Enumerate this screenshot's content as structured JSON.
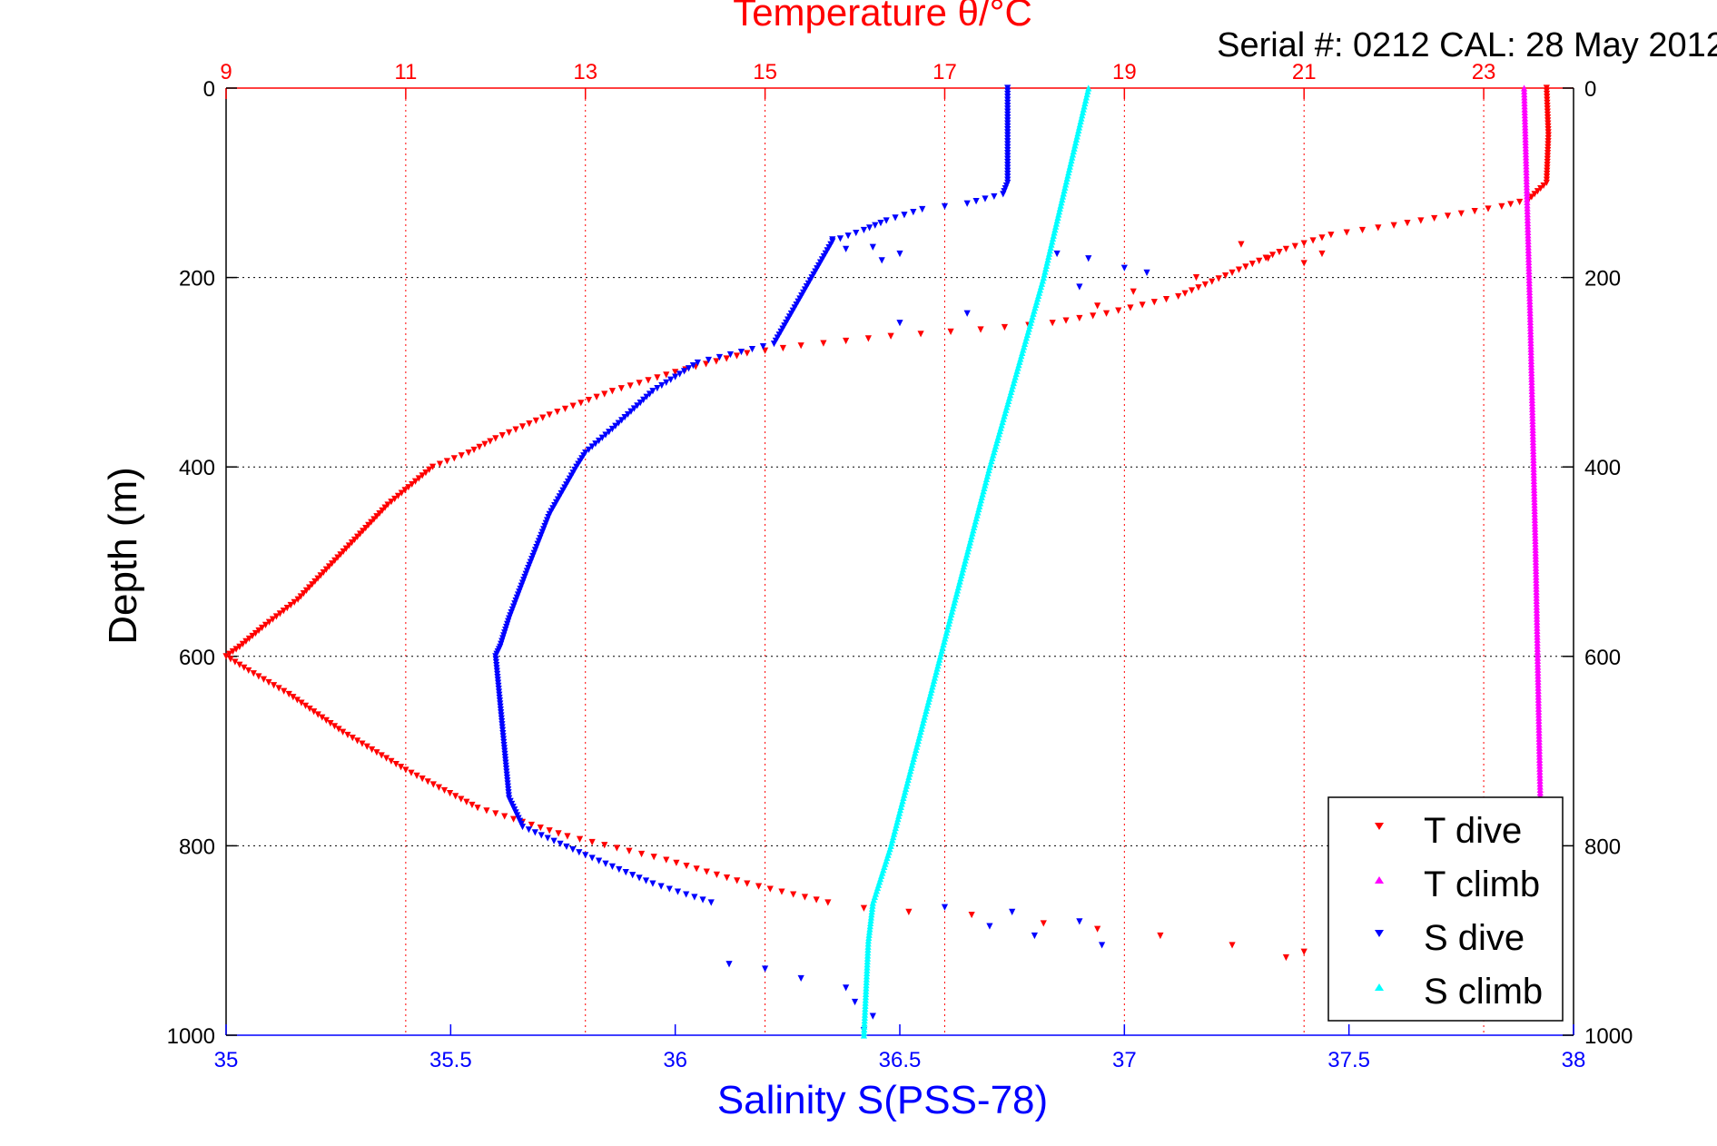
{
  "figure": {
    "title": "Temperature θ/°C",
    "serial_label": "Serial #: 0212  CAL: 28 May 2012",
    "ylabel": "Depth (m)",
    "xlabel": "Salinity S(PSS-78)"
  },
  "colors": {
    "temperature_axis": "#ff0000",
    "salinity_axis": "#0000ff",
    "t_dive": "#ff0000",
    "t_climb": "#ff00ff",
    "s_dive": "#0000ff",
    "s_climb": "#00ffff",
    "grid_temperature": "#ff0000",
    "grid_depth": "#000000"
  },
  "chart_data": {
    "type": "scatter",
    "title": "Temperature θ/°C",
    "subtitle": "Serial #: 0212  CAL: 28 May 2012",
    "ylabel": "Depth (m)",
    "xlabel": "Salinity S(PSS-78)",
    "x_top_label": "Temperature θ/°C",
    "ylim": [
      0,
      1000
    ],
    "y_reversed": true,
    "temperature_xlim": [
      9,
      24
    ],
    "salinity_xlim": [
      35,
      38
    ],
    "y_ticks": [
      0,
      200,
      400,
      600,
      800,
      1000
    ],
    "temperature_ticks": [
      9,
      11,
      13,
      15,
      17,
      19,
      21,
      23
    ],
    "salinity_ticks": [
      35,
      35.5,
      36,
      36.5,
      37,
      37.5,
      38
    ],
    "grid": "on",
    "legend_position": "bottom-right",
    "legend": [
      "T dive",
      "T climb",
      "S dive",
      "S climb"
    ],
    "series": [
      {
        "name": "T dive",
        "axis": "temperature",
        "marker": "triangle-down",
        "points": [
          [
            23.7,
            0
          ],
          [
            23.72,
            50
          ],
          [
            23.7,
            100
          ],
          [
            23.5,
            118
          ],
          [
            23.2,
            125
          ],
          [
            22.6,
            135
          ],
          [
            22.0,
            145
          ],
          [
            21.3,
            155
          ],
          [
            20.8,
            170
          ],
          [
            20.2,
            195
          ],
          [
            19.6,
            220
          ],
          [
            18.8,
            238
          ],
          [
            18.2,
            248
          ],
          [
            17.4,
            255
          ],
          [
            16.4,
            262
          ],
          [
            15.4,
            272
          ],
          [
            14.8,
            280
          ],
          [
            14.0,
            300
          ],
          [
            13.3,
            320
          ],
          [
            12.6,
            345
          ],
          [
            12.0,
            370
          ],
          [
            11.7,
            385
          ],
          [
            11.3,
            400
          ],
          [
            10.8,
            440
          ],
          [
            10.4,
            480
          ],
          [
            9.8,
            540
          ],
          [
            9.4,
            570
          ],
          [
            9.15,
            590
          ],
          [
            9.0,
            600
          ],
          [
            9.25,
            615
          ],
          [
            9.7,
            640
          ],
          [
            10.3,
            680
          ],
          [
            11.0,
            720
          ],
          [
            11.8,
            760
          ],
          [
            12.8,
            790
          ],
          [
            13.9,
            815
          ],
          [
            14.8,
            840
          ],
          [
            15.7,
            860
          ]
        ],
        "scatter_points": [
          [
            20.3,
            165
          ],
          [
            20.6,
            180
          ],
          [
            21.0,
            185
          ],
          [
            21.2,
            175
          ],
          [
            19.8,
            200
          ],
          [
            19.1,
            215
          ],
          [
            18.7,
            230
          ],
          [
            16.1,
            866
          ],
          [
            16.6,
            870
          ],
          [
            17.3,
            873
          ],
          [
            18.1,
            882
          ],
          [
            18.7,
            888
          ],
          [
            19.4,
            895
          ],
          [
            20.2,
            905
          ],
          [
            21.0,
            912
          ],
          [
            21.6,
            922
          ],
          [
            22.1,
            930
          ],
          [
            21.4,
            925
          ],
          [
            20.8,
            918
          ],
          [
            21.9,
            915
          ]
        ]
      },
      {
        "name": "T climb",
        "axis": "temperature",
        "marker": "triangle-up",
        "points": [
          [
            23.45,
            0
          ],
          [
            23.52,
            250
          ],
          [
            23.58,
            500
          ],
          [
            23.63,
            750
          ],
          [
            23.65,
            860
          ]
        ]
      },
      {
        "name": "S dive",
        "axis": "salinity",
        "marker": "triangle-down",
        "points": [
          [
            36.74,
            0
          ],
          [
            36.74,
            50
          ],
          [
            36.74,
            100
          ],
          [
            36.73,
            112
          ],
          [
            36.65,
            122
          ],
          [
            36.55,
            128
          ],
          [
            36.47,
            140
          ],
          [
            36.42,
            150
          ],
          [
            36.35,
            162
          ],
          [
            36.22,
            270
          ],
          [
            36.05,
            290
          ],
          [
            35.95,
            320
          ],
          [
            35.86,
            360
          ],
          [
            35.8,
            385
          ],
          [
            35.78,
            400
          ],
          [
            35.72,
            450
          ],
          [
            35.67,
            510
          ],
          [
            35.63,
            560
          ],
          [
            35.61,
            590
          ],
          [
            35.6,
            600
          ],
          [
            35.61,
            650
          ],
          [
            35.62,
            700
          ],
          [
            35.63,
            750
          ],
          [
            35.66,
            780
          ],
          [
            35.8,
            810
          ],
          [
            35.95,
            840
          ],
          [
            36.08,
            860
          ]
        ],
        "scatter_points": [
          [
            36.35,
            160
          ],
          [
            36.38,
            170
          ],
          [
            36.44,
            168
          ],
          [
            36.5,
            175
          ],
          [
            36.46,
            182
          ],
          [
            36.85,
            175
          ],
          [
            36.92,
            180
          ],
          [
            37.0,
            190
          ],
          [
            37.05,
            195
          ],
          [
            36.9,
            210
          ],
          [
            36.65,
            238
          ],
          [
            36.5,
            248
          ],
          [
            36.6,
            865
          ],
          [
            36.75,
            870
          ],
          [
            36.9,
            880
          ],
          [
            36.7,
            885
          ],
          [
            36.8,
            895
          ],
          [
            36.95,
            905
          ],
          [
            36.12,
            925
          ],
          [
            36.2,
            930
          ],
          [
            36.28,
            940
          ],
          [
            36.38,
            950
          ],
          [
            36.4,
            965
          ],
          [
            36.44,
            980
          ],
          [
            36.42,
            995
          ]
        ]
      },
      {
        "name": "S climb",
        "axis": "salinity",
        "marker": "triangle-up",
        "points": [
          [
            36.92,
            0
          ],
          [
            36.82,
            200
          ],
          [
            36.7,
            400
          ],
          [
            36.59,
            600
          ],
          [
            36.48,
            800
          ],
          [
            36.44,
            860
          ],
          [
            36.43,
            900
          ],
          [
            36.42,
            1000
          ]
        ]
      }
    ]
  }
}
